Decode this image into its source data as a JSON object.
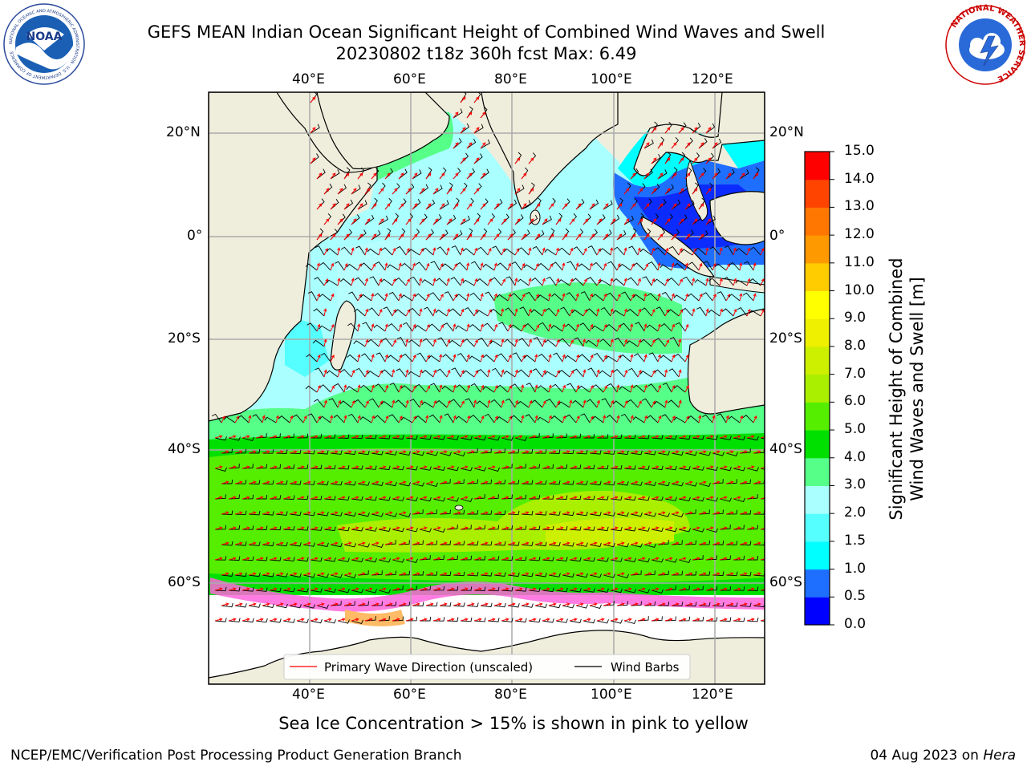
{
  "header": {
    "title_line1": "GEFS MEAN Indian Ocean Significant Height of Combined Wind Waves and Swell",
    "title_line2": "20230802 t18z 360h fcst   Max: 6.49"
  },
  "logos": {
    "left_name": "noaa-logo",
    "left_text": "NOAA",
    "left_ring_text": "NATIONAL OCEANIC AND ATMOSPHERIC ADMINISTRATION · U.S. DEPARTMENT OF COMMERCE",
    "right_name": "nws-logo",
    "right_ring_text": "NATIONAL WEATHER SERVICE"
  },
  "map": {
    "lon_ticks_top": [
      "40°E",
      "60°E",
      "80°E",
      "100°E",
      "120°E"
    ],
    "lon_ticks_bottom": [
      "40°E",
      "60°E",
      "80°E",
      "100°E",
      "120°E"
    ],
    "lat_ticks_left": [
      "20°N",
      "0°",
      "20°S",
      "40°S",
      "60°S"
    ],
    "lat_ticks_right": [
      "20°N",
      "0°",
      "20°S",
      "40°S",
      "60°S"
    ],
    "legend": {
      "wave_label": "Primary Wave Direction (unscaled)",
      "barb_label": "Wind Barbs",
      "wave_color": "#ff0000",
      "barb_color": "#000000"
    },
    "land_color": "#efeedc"
  },
  "colorbar": {
    "label_line1": "Significant Height of Combined",
    "label_line2": "Wind Waves and Swell [m]",
    "ticks": [
      "0.0",
      "0.5",
      "1.0",
      "1.5",
      "2.0",
      "3.0",
      "4.0",
      "5.0",
      "6.0",
      "7.0",
      "8.0",
      "9.0",
      "10.0",
      "11.0",
      "12.0",
      "13.0",
      "14.0",
      "15.0"
    ],
    "colors": [
      "#0000ff",
      "#1e6eff",
      "#00ffff",
      "#55ffff",
      "#aaffff",
      "#55ff88",
      "#00e000",
      "#55ee00",
      "#aaee00",
      "#ccf000",
      "#eef000",
      "#ffff00",
      "#ffcc00",
      "#ff9900",
      "#ff7700",
      "#ff4400",
      "#ff0000"
    ]
  },
  "caption": "Sea Ice Concentration > 15% is shown in pink to yellow",
  "footer": {
    "left": "NCEP/EMC/Verification Post Processing Product Generation Branch",
    "right_prefix": "04 Aug 2023 on ",
    "right_host": "Hera"
  }
}
